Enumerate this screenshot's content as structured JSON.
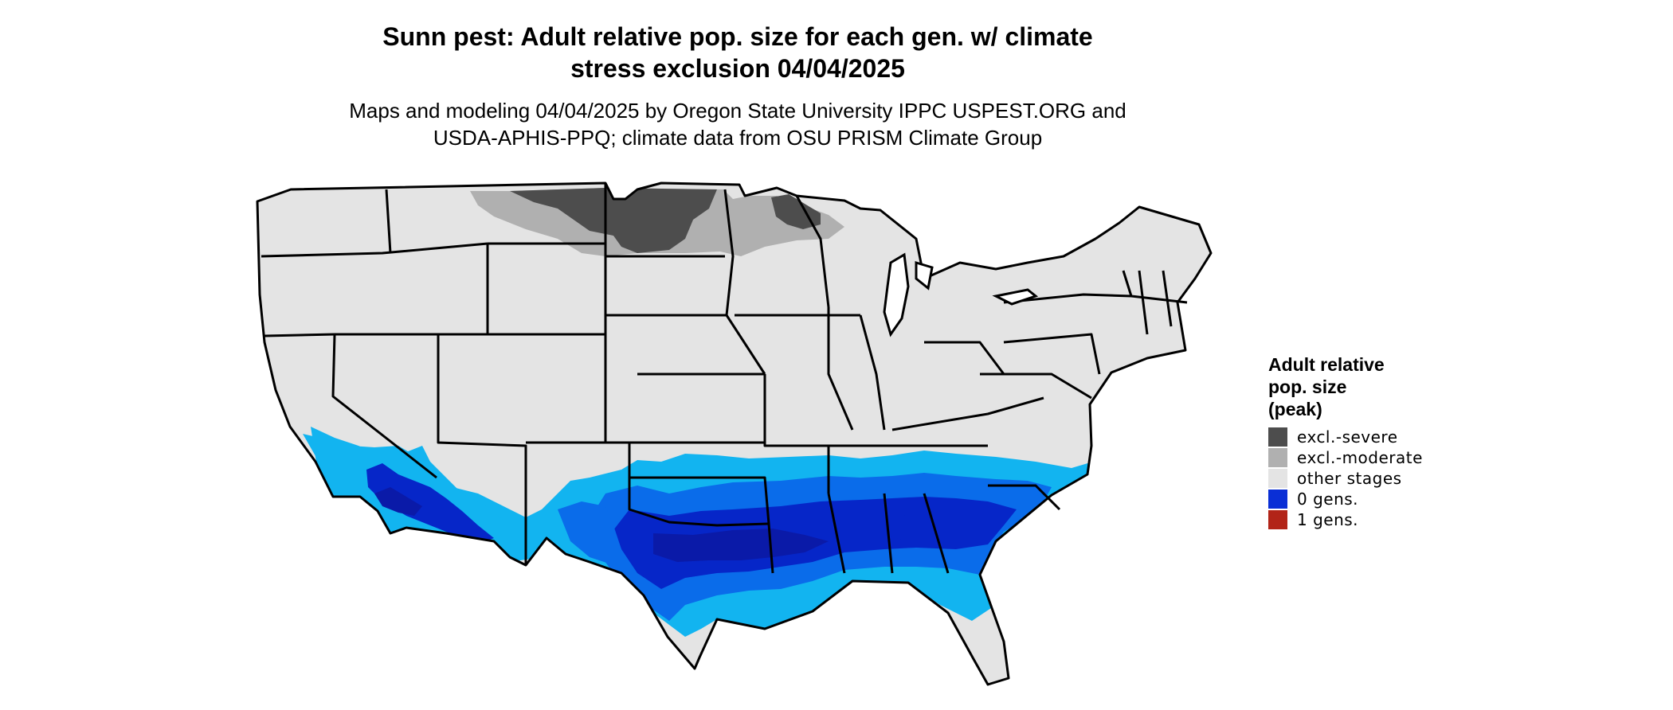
{
  "header": {
    "title": "Sunn pest: Adult relative pop. size for each gen. w/ climate\nstress exclusion 04/04/2025",
    "subtitle": "Maps and modeling 04/04/2025 by Oregon State University IPPC USPEST.ORG and\nUSDA-APHIS-PPQ; climate data from OSU PRISM Climate Group"
  },
  "legend": {
    "title": "Adult relative\npop. size\n(peak)",
    "items": [
      {
        "label": "excl.-severe",
        "color": "#4d4d4d"
      },
      {
        "label": "excl.-moderate",
        "color": "#b0b0b0"
      },
      {
        "label": "other stages",
        "color": "#e4e4e4"
      },
      {
        "label": "0 gens.",
        "color": "#0a2fd6"
      },
      {
        "label": "1 gens.",
        "color": "#b22418"
      }
    ]
  },
  "map": {
    "region": "Contiguous United States",
    "base_color": "#e4e4e4",
    "border_color": "#000000",
    "zone_colors": {
      "severe": "#4d4d4d",
      "moderate": "#b0b0b0",
      "light_blue": "#12b4f0",
      "mid_blue": "#0a6cea",
      "deep_blue": "#0626c8",
      "navy": "#0a1aa8"
    }
  }
}
